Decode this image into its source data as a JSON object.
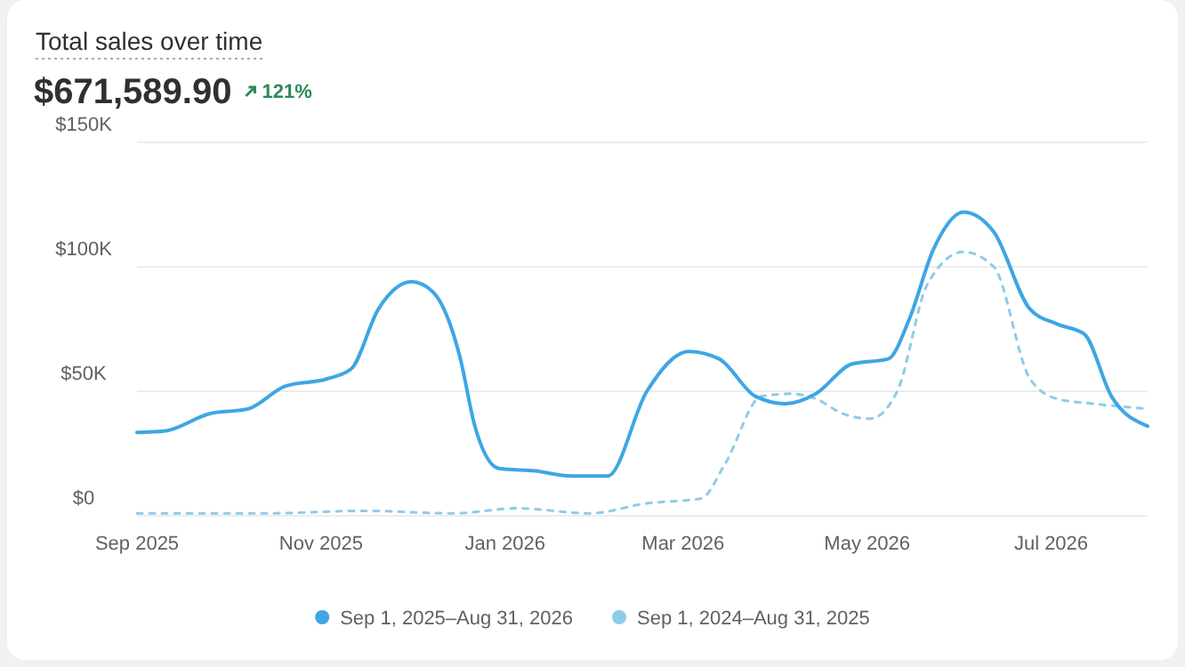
{
  "chart_data": {
    "type": "line",
    "title": "Total sales over time",
    "subtitle": "$671,589.90",
    "annotations": [
      "121%"
    ],
    "xlim": [
      "2025-09-01",
      "2026-08-02"
    ],
    "xticks": [
      {
        "value": "2025-09-01",
        "label": "Sep 2025"
      },
      {
        "value": "2025-11-01",
        "label": "Nov 2025"
      },
      {
        "value": "2026-01-01",
        "label": "Jan 2026"
      },
      {
        "value": "2026-03-01",
        "label": "Mar 2026"
      },
      {
        "value": "2026-05-01",
        "label": "May 2026"
      },
      {
        "value": "2026-07-01",
        "label": "Jul 2026"
      }
    ],
    "ylim": [
      0,
      150000
    ],
    "yticks": [
      {
        "value": 0,
        "label": "$0"
      },
      {
        "value": 50000,
        "label": "$50K"
      },
      {
        "value": 100000,
        "label": "$100K"
      },
      {
        "value": 150000,
        "label": "$150K"
      }
    ],
    "grid": "y",
    "legend": "bottom",
    "series": [
      {
        "name": "Sep 1, 2025–Aug 31, 2026",
        "color": "#3ea6e3",
        "line_style": "solid",
        "x": [
          "2025-09-01",
          "2025-09-10",
          "2025-09-25",
          "2025-10-08",
          "2025-10-20",
          "2025-11-03",
          "2025-11-11",
          "2025-11-20",
          "2025-12-01",
          "2025-12-08",
          "2025-12-17",
          "2025-12-22",
          "2025-12-30",
          "2026-01-11",
          "2026-01-23",
          "2026-02-04",
          "2026-02-17",
          "2026-03-03",
          "2026-03-13",
          "2026-03-25",
          "2026-04-04",
          "2026-04-14",
          "2026-04-26",
          "2026-05-08",
          "2026-05-15",
          "2026-05-23",
          "2026-06-02",
          "2026-06-12",
          "2026-06-24",
          "2026-07-03",
          "2026-07-12",
          "2026-07-21",
          "2026-08-02"
        ],
        "values": [
          33500,
          34000,
          41000,
          43000,
          52000,
          55000,
          59000,
          83000,
          94000,
          90000,
          64000,
          36000,
          19000,
          18000,
          16000,
          16000,
          50000,
          66000,
          63000,
          48000,
          45000,
          49000,
          61000,
          63000,
          79000,
          107000,
          122000,
          114000,
          83000,
          77000,
          73000,
          48000,
          36000
        ]
      },
      {
        "name": "Sep 1, 2024–Aug 31, 2025",
        "color": "#8ecbe8",
        "line_style": "dashed",
        "x": [
          "2025-09-01",
          "2025-10-15",
          "2025-11-15",
          "2025-12-15",
          "2026-01-05",
          "2026-01-29",
          "2026-02-17",
          "2026-03-07",
          "2026-03-15",
          "2026-03-27",
          "2026-04-06",
          "2026-04-14",
          "2026-04-23",
          "2026-05-02",
          "2026-05-11",
          "2026-05-21",
          "2026-06-02",
          "2026-06-12",
          "2026-06-24",
          "2026-07-03",
          "2026-07-15",
          "2026-08-02"
        ],
        "values": [
          1000,
          1000,
          2000,
          1000,
          3000,
          1000,
          5000,
          7000,
          21000,
          48000,
          49000,
          47000,
          41000,
          39000,
          50000,
          93000,
          106000,
          100000,
          55000,
          47000,
          45000,
          43000
        ]
      }
    ]
  }
}
